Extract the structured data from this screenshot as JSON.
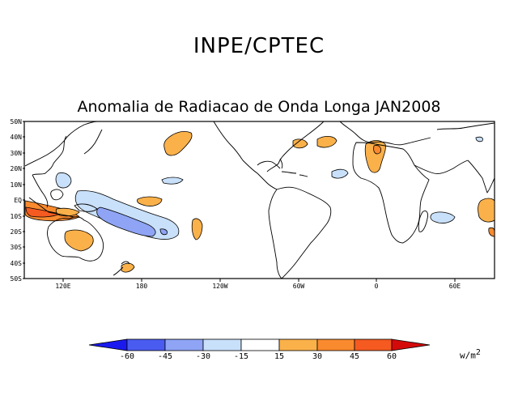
{
  "header": {
    "title": "INPE/CPTEC"
  },
  "map": {
    "title": "Anomalia de Radiacao de Onda Longa JAN2008",
    "lat_labels": [
      "50N",
      "40N",
      "30N",
      "20N",
      "10N",
      "EQ",
      "10S",
      "20S",
      "30S",
      "40S",
      "50S"
    ],
    "lon_labels": [
      "120E",
      "180",
      "120W",
      "60W",
      "0",
      "60E"
    ],
    "colors": {
      "neg60": "#1a1aee",
      "neg45": "#4a5cf0",
      "neg30": "#8fa4f4",
      "neg15": "#c8e0fa",
      "pos15": "#fbb14a",
      "pos30": "#f98a2e",
      "pos45": "#f55a20",
      "pos60": "#d40a0a"
    }
  },
  "colorbar": {
    "ticks": [
      "-60",
      "-45",
      "-30",
      "-15",
      "15",
      "30",
      "45",
      "60"
    ],
    "units_base": "w/m",
    "units_exp": "2"
  }
}
